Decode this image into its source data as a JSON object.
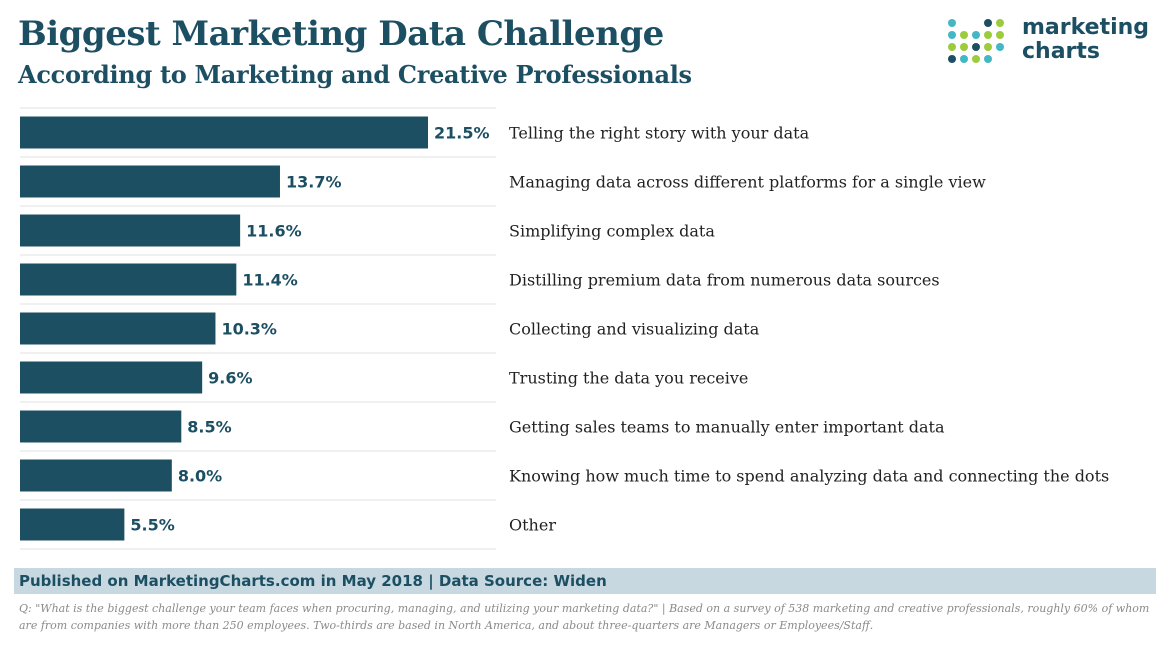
{
  "header": {
    "title": "Biggest Marketing Data Challenge",
    "subtitle": "According to Marketing and Creative Professionals"
  },
  "logo": {
    "line1": "marketing",
    "line2": "charts",
    "dot_colors": [
      "#43b7c3",
      "#9ccb3b",
      "#1d4f63"
    ]
  },
  "footer": {
    "source": "Published on MarketingCharts.com in May 2018 | Data Source: Widen",
    "note": "Q: \"What is the biggest challenge your team faces when procuring, managing, and utilizing your marketing data?\" | Based on a survey of 538 marketing and creative professionals, roughly 60% of whom are from companies with more than 250 employees. Two-thirds are based in North America, and about three-quarters are Managers or Employees/Staff."
  },
  "colors": {
    "bar": "#1d4f63",
    "text": "#1d4f63",
    "category_text": "#222222",
    "gridline": "#e2e2e2",
    "source_band": "#c7d8e1"
  },
  "chart_data": {
    "type": "bar",
    "orientation": "horizontal",
    "title": "Biggest Marketing Data Challenge",
    "subtitle": "According to Marketing and Creative Professionals",
    "xlabel": "",
    "ylabel": "",
    "xlim": [
      0,
      21.5
    ],
    "grid": true,
    "legend": "none",
    "categories": [
      "Telling the right story with your data",
      "Managing data across different platforms for a single view",
      "Simplifying complex data",
      "Distilling premium data from numerous data sources",
      "Collecting and visualizing data",
      "Trusting the data you receive",
      "Getting sales teams to manually enter important data",
      "Knowing how much time to spend analyzing data and connecting the dots",
      "Other"
    ],
    "values": [
      21.5,
      13.7,
      11.6,
      11.4,
      10.3,
      9.6,
      8.5,
      8.0,
      5.5
    ],
    "value_labels": [
      "21.5%",
      "13.7%",
      "11.6%",
      "11.4%",
      "10.3%",
      "9.6%",
      "8.5%",
      "8.0%",
      "5.5%"
    ]
  }
}
